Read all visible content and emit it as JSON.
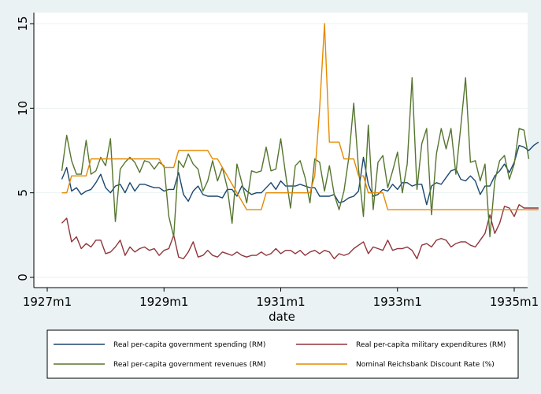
{
  "chart_data": {
    "type": "line",
    "title": "",
    "xlabel": "date",
    "ylabel": "",
    "x_ticks": [
      "1927m1",
      "1929m1",
      "1931m1",
      "1933m1",
      "1935m1"
    ],
    "y_ticks": [
      "0",
      "5",
      "10",
      "15"
    ],
    "ylim": [
      0,
      15
    ],
    "grid": true,
    "legend_position": "bottom",
    "x_start": "1927m4",
    "x_end": "1935m1",
    "series": [
      {
        "name": "Real per-capita government spending (RM)",
        "color": "#1a476f",
        "values": [
          5.8,
          6.5,
          5.1,
          5.3,
          4.9,
          5.1,
          5.2,
          5.6,
          6.1,
          5.3,
          5.0,
          5.4,
          5.5,
          5.0,
          5.6,
          5.1,
          5.5,
          5.5,
          5.4,
          5.3,
          5.3,
          5.1,
          5.2,
          5.2,
          6.2,
          4.9,
          4.5,
          5.1,
          5.4,
          4.9,
          4.8,
          4.8,
          4.8,
          4.7,
          5.2,
          5.2,
          4.8,
          5.4,
          5.1,
          4.9,
          5.0,
          5.0,
          5.3,
          5.6,
          5.2,
          5.7,
          5.4,
          5.4,
          5.4,
          5.5,
          5.4,
          5.3,
          5.3,
          4.8,
          4.8,
          4.8,
          4.9,
          4.4,
          4.5,
          4.7,
          4.8,
          5.1,
          7.1,
          5.5,
          4.8,
          4.9,
          5.2,
          5.1,
          5.5,
          5.2,
          5.6,
          5.6,
          5.4,
          5.5,
          5.5,
          4.3,
          5.4,
          5.6,
          5.5,
          5.9,
          6.3,
          6.4,
          5.8,
          5.7,
          6.0,
          5.7,
          4.9,
          5.4,
          5.4,
          6.0,
          6.3,
          6.7,
          6.2,
          6.8,
          7.8,
          7.7,
          7.5,
          7.8,
          8.0
        ]
      },
      {
        "name": "Real per-capita military expenditures (RM)",
        "color": "#90353b",
        "values": [
          3.2,
          3.5,
          2.1,
          2.4,
          1.7,
          2.0,
          1.8,
          2.2,
          2.2,
          1.4,
          1.5,
          1.8,
          2.2,
          1.3,
          1.8,
          1.5,
          1.7,
          1.8,
          1.6,
          1.7,
          1.3,
          1.6,
          1.7,
          2.5,
          1.2,
          1.1,
          1.5,
          2.1,
          1.2,
          1.3,
          1.6,
          1.3,
          1.2,
          1.5,
          1.4,
          1.3,
          1.5,
          1.3,
          1.2,
          1.3,
          1.3,
          1.5,
          1.3,
          1.4,
          1.7,
          1.4,
          1.6,
          1.6,
          1.4,
          1.6,
          1.3,
          1.5,
          1.6,
          1.4,
          1.6,
          1.5,
          1.1,
          1.4,
          1.3,
          1.4,
          1.7,
          1.9,
          2.1,
          1.4,
          1.8,
          1.7,
          1.6,
          2.2,
          1.6,
          1.7,
          1.7,
          1.8,
          1.6,
          1.1,
          1.9,
          2.0,
          1.8,
          2.2,
          2.3,
          2.2,
          1.8,
          2.0,
          2.1,
          2.1,
          1.9,
          1.8,
          2.2,
          2.6,
          3.7,
          2.6,
          3.2,
          4.2,
          4.1,
          3.6,
          4.3,
          4.1,
          4.1,
          4.1,
          4.1
        ]
      },
      {
        "name": "Real per-capita government revenues (RM)",
        "color": "#55752f",
        "values": [
          6.3,
          8.4,
          6.9,
          6.1,
          6.1,
          8.1,
          6.1,
          6.3,
          7.1,
          6.6,
          8.2,
          3.3,
          6.4,
          6.8,
          7.1,
          6.8,
          6.2,
          6.9,
          6.8,
          6.4,
          6.8,
          6.6,
          3.6,
          2.4,
          6.9,
          6.5,
          7.3,
          6.7,
          6.4,
          5.1,
          5.7,
          6.9,
          5.7,
          6.5,
          5.3,
          3.2,
          6.7,
          5.6,
          4.4,
          6.3,
          6.2,
          6.3,
          7.7,
          6.3,
          6.4,
          8.2,
          6.1,
          4.1,
          6.6,
          6.9,
          5.9,
          4.4,
          7.0,
          6.8,
          5.1,
          6.6,
          4.9,
          4.0,
          5.1,
          7.1,
          10.3,
          6.4,
          3.6,
          9.0,
          4.0,
          6.8,
          7.2,
          5.3,
          6.3,
          7.4,
          5.0,
          6.7,
          11.8,
          5.2,
          7.9,
          8.8,
          3.7,
          7.3,
          8.8,
          7.6,
          8.8,
          6.1,
          8.9,
          11.8,
          6.8,
          6.9,
          5.7,
          6.7,
          2.4,
          5.7,
          6.9,
          7.2,
          5.8,
          6.7,
          8.8,
          8.7,
          7.0
        ]
      },
      {
        "name": "Nominal Reichsbank Discount Rate (%)",
        "color": "#e68a00",
        "values": [
          5.0,
          5.0,
          6.0,
          6.0,
          6.0,
          6.0,
          7.0,
          7.0,
          7.0,
          7.0,
          7.0,
          7.0,
          7.0,
          7.0,
          7.0,
          7.0,
          7.0,
          7.0,
          7.0,
          7.0,
          7.0,
          6.5,
          6.5,
          6.5,
          7.5,
          7.5,
          7.5,
          7.5,
          7.5,
          7.5,
          7.5,
          7.0,
          7.0,
          6.5,
          6.0,
          5.5,
          5.0,
          4.5,
          4.0,
          4.0,
          4.0,
          4.0,
          5.0,
          5.0,
          5.0,
          5.0,
          5.0,
          5.0,
          5.0,
          5.0,
          5.0,
          5.0,
          6.0,
          10.0,
          15.0,
          8.0,
          8.0,
          8.0,
          7.0,
          7.0,
          7.0,
          6.0,
          6.0,
          5.0,
          5.0,
          5.0,
          5.0,
          4.0,
          4.0,
          4.0,
          4.0,
          4.0,
          4.0,
          4.0,
          4.0,
          4.0,
          4.0,
          4.0,
          4.0,
          4.0,
          4.0,
          4.0,
          4.0,
          4.0,
          4.0,
          4.0,
          4.0,
          4.0,
          4.0,
          4.0,
          4.0,
          4.0,
          4.0,
          4.0,
          4.0,
          4.0,
          4.0,
          4.0,
          4.0
        ]
      }
    ]
  }
}
